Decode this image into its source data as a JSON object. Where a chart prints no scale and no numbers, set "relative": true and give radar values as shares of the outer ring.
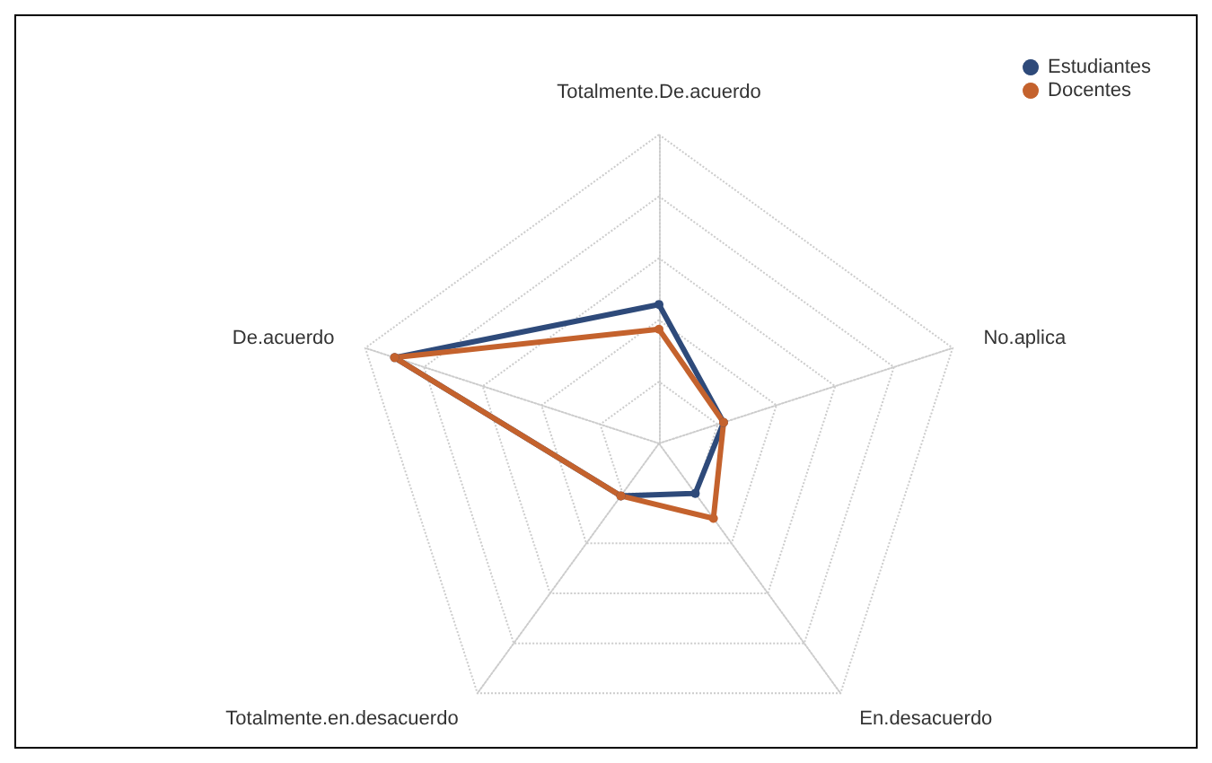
{
  "chart_data": {
    "type": "radar",
    "relative": true,
    "categories": [
      "Totalmente.De.acuerdo",
      "No.aplica",
      "En.desacuerdo",
      "Totalmente.en.desacuerdo",
      "De.acuerdo"
    ],
    "series": [
      {
        "name": "Estudiantes",
        "color": "#2e4a7a",
        "values": [
          0.45,
          0.22,
          0.2,
          0.21,
          0.9
        ]
      },
      {
        "name": "Docentes",
        "color": "#c4622d",
        "values": [
          0.37,
          0.22,
          0.3,
          0.21,
          0.9
        ]
      }
    ],
    "grid": true,
    "legend": "top right",
    "marker": "circle",
    "line_style": "solid"
  }
}
